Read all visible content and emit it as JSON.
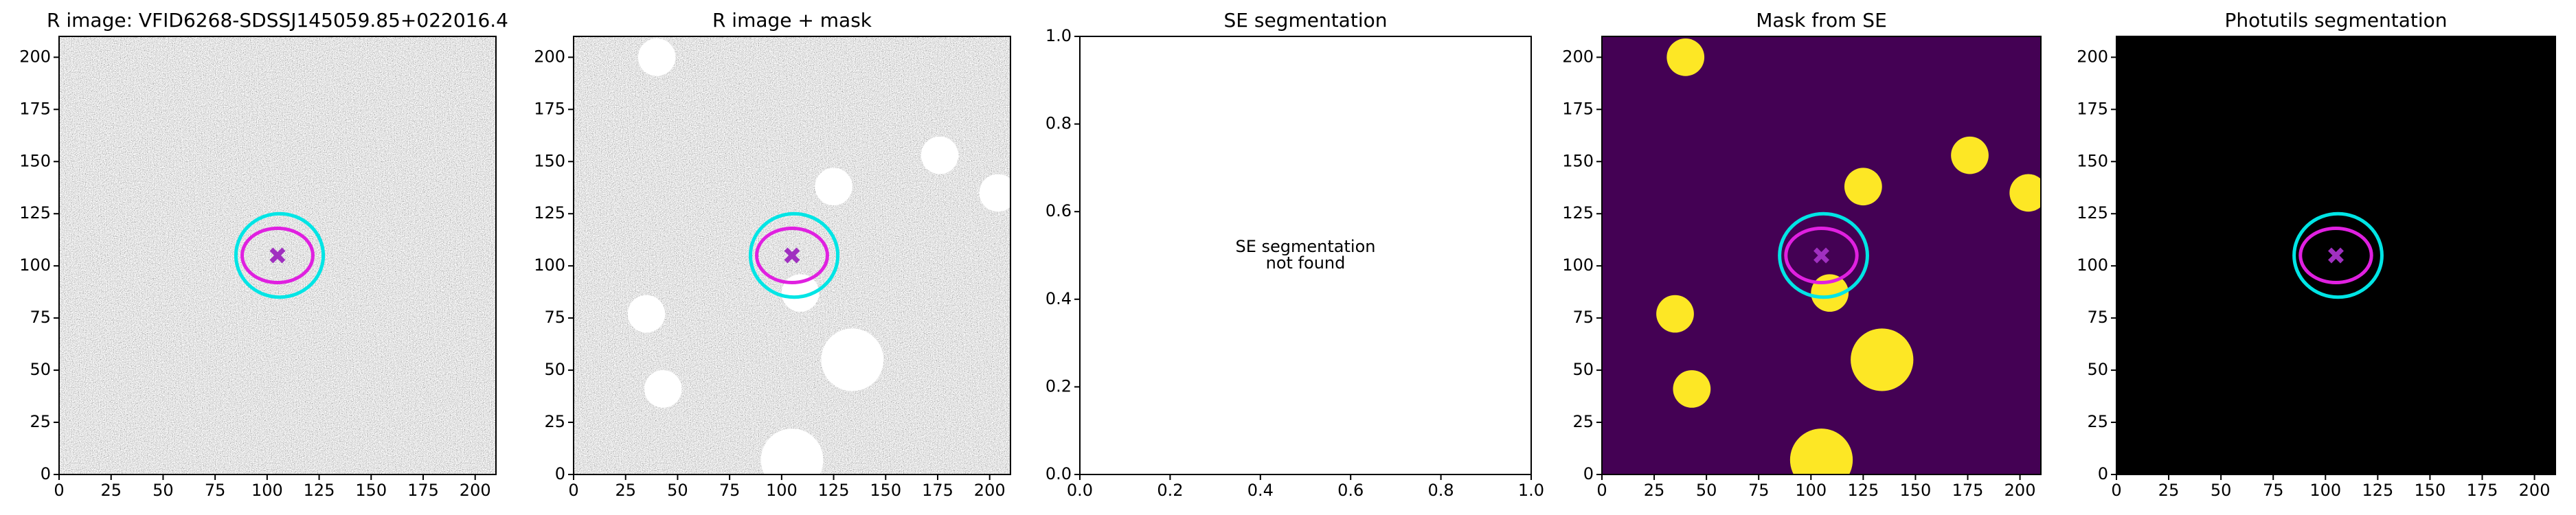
{
  "chart_data": [
    {
      "type": "image",
      "title": "R image: VFID6268-SDSSJ145059.85+022016.4",
      "background": "noise",
      "xlim": [
        0,
        210
      ],
      "ylim": [
        0,
        210
      ],
      "xticks": [
        0,
        25,
        50,
        75,
        100,
        125,
        150,
        175,
        200
      ],
      "yticks": [
        0,
        25,
        50,
        75,
        100,
        125,
        150,
        175,
        200
      ],
      "ellipses": [
        {
          "x": 106,
          "y": 105,
          "rx": 21,
          "ry": 20,
          "color": "#00e5e5"
        },
        {
          "x": 105,
          "y": 105,
          "rx": 17,
          "ry": 13,
          "color": "#e020e0"
        }
      ],
      "marker": {
        "x": 105,
        "y": 105,
        "color": "#a030c0"
      }
    },
    {
      "type": "image",
      "title": "R image + mask",
      "background": "noise",
      "xlim": [
        0,
        210
      ],
      "ylim": [
        0,
        210
      ],
      "xticks": [
        0,
        25,
        50,
        75,
        100,
        125,
        150,
        175,
        200
      ],
      "yticks": [
        0,
        25,
        50,
        75,
        100,
        125,
        150,
        175,
        200
      ],
      "mask_color": "#ffffff",
      "masks": [
        {
          "x": 40,
          "y": 200,
          "r": 9
        },
        {
          "x": 125,
          "y": 138,
          "r": 9
        },
        {
          "x": 176,
          "y": 153,
          "r": 9
        },
        {
          "x": 204,
          "y": 135,
          "r": 9
        },
        {
          "x": 35,
          "y": 77,
          "r": 9
        },
        {
          "x": 43,
          "y": 41,
          "r": 9
        },
        {
          "x": 109,
          "y": 87,
          "r": 9
        },
        {
          "x": 134,
          "y": 55,
          "r": 15
        },
        {
          "x": 105,
          "y": 7,
          "r": 15
        }
      ],
      "ellipses": [
        {
          "x": 106,
          "y": 105,
          "rx": 21,
          "ry": 20,
          "color": "#00e5e5"
        },
        {
          "x": 105,
          "y": 105,
          "rx": 17,
          "ry": 13,
          "color": "#e020e0"
        }
      ],
      "marker": {
        "x": 105,
        "y": 105,
        "color": "#a030c0"
      }
    },
    {
      "type": "empty",
      "title": "SE segmentation",
      "background": "#ffffff",
      "xlim": [
        0,
        1
      ],
      "ylim": [
        0,
        1
      ],
      "xticks": [
        {
          "value": 0,
          "label": "0.0"
        },
        0.2,
        0.4,
        0.6,
        0.8,
        {
          "value": 1,
          "label": "1.0"
        }
      ],
      "yticks": [
        {
          "value": 0,
          "label": "0.0"
        },
        0.2,
        0.4,
        0.6,
        0.8,
        {
          "value": 1,
          "label": "1.0"
        }
      ],
      "annotation": [
        "SE segmentation",
        "not found"
      ]
    },
    {
      "type": "image",
      "title": "Mask from SE",
      "background": "#440154",
      "xlim": [
        0,
        210
      ],
      "ylim": [
        0,
        210
      ],
      "xticks": [
        0,
        25,
        50,
        75,
        100,
        125,
        150,
        175,
        200
      ],
      "yticks": [
        0,
        25,
        50,
        75,
        100,
        125,
        150,
        175,
        200
      ],
      "mask_color": "#fde725",
      "masks": [
        {
          "x": 40,
          "y": 200,
          "r": 9
        },
        {
          "x": 125,
          "y": 138,
          "r": 9
        },
        {
          "x": 176,
          "y": 153,
          "r": 9
        },
        {
          "x": 204,
          "y": 135,
          "r": 9
        },
        {
          "x": 35,
          "y": 77,
          "r": 9
        },
        {
          "x": 43,
          "y": 41,
          "r": 9
        },
        {
          "x": 109,
          "y": 87,
          "r": 9
        },
        {
          "x": 134,
          "y": 55,
          "r": 15
        },
        {
          "x": 105,
          "y": 7,
          "r": 15
        }
      ],
      "ellipses": [
        {
          "x": 106,
          "y": 105,
          "rx": 21,
          "ry": 20,
          "color": "#00e5e5"
        },
        {
          "x": 105,
          "y": 105,
          "rx": 17,
          "ry": 13,
          "color": "#e020e0"
        }
      ],
      "marker": {
        "x": 105,
        "y": 105,
        "color": "#a030c0"
      }
    },
    {
      "type": "image",
      "title": "Photutils segmentation",
      "background": "#000000",
      "xlim": [
        0,
        210
      ],
      "ylim": [
        0,
        210
      ],
      "xticks": [
        0,
        25,
        50,
        75,
        100,
        125,
        150,
        175,
        200
      ],
      "yticks": [
        0,
        25,
        50,
        75,
        100,
        125,
        150,
        175,
        200
      ],
      "ellipses": [
        {
          "x": 106,
          "y": 105,
          "rx": 21,
          "ry": 20,
          "color": "#00e5e5"
        },
        {
          "x": 105,
          "y": 105,
          "rx": 17,
          "ry": 13,
          "color": "#e020e0"
        }
      ],
      "marker": {
        "x": 105,
        "y": 105,
        "color": "#a030c0"
      }
    }
  ]
}
